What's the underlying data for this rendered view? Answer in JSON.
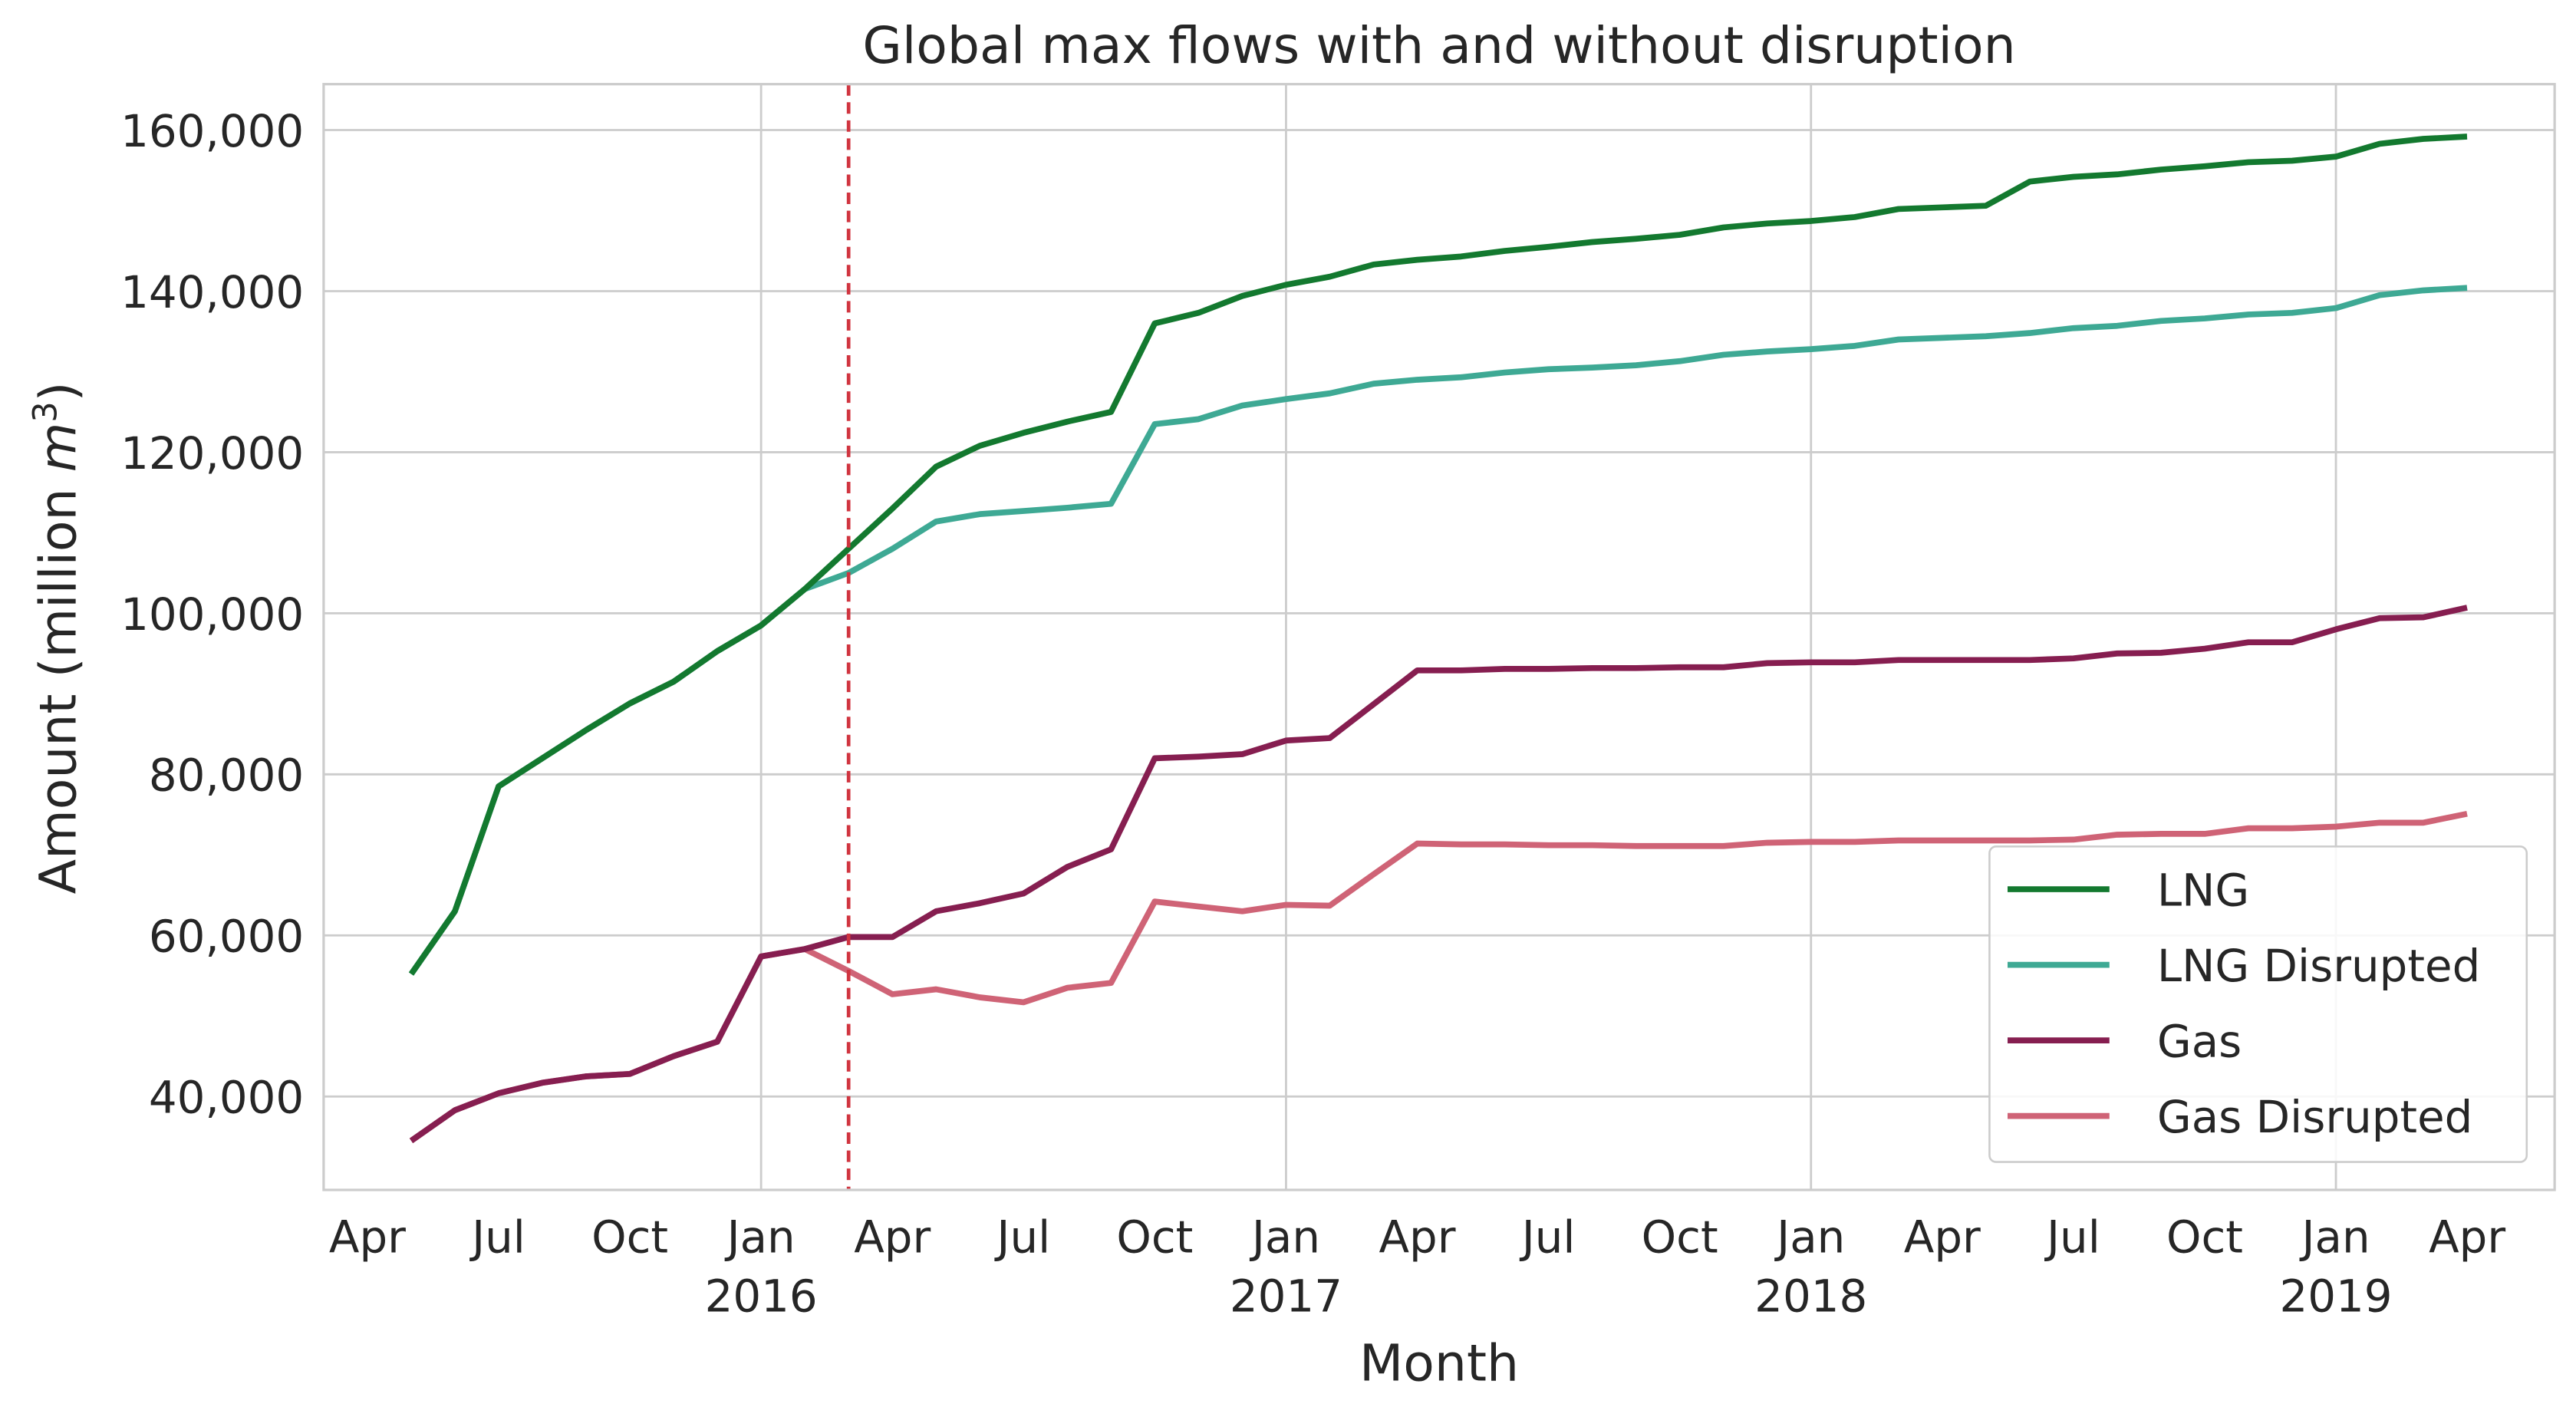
{
  "chart_data": {
    "type": "line",
    "title": "Global max flows with and without disruption",
    "xlabel": "Month",
    "ylabel": "Amount (million m³)",
    "ylabel_parts": {
      "main": "Amount (million ",
      "var": "m",
      "sup": "3",
      "close": ")"
    },
    "x_start": "2015-05",
    "x_frequency": "monthly",
    "x_ticks": [
      {
        "date": "2015-04",
        "label": "Apr",
        "year": ""
      },
      {
        "date": "2015-07",
        "label": "Jul",
        "year": ""
      },
      {
        "date": "2015-10",
        "label": "Oct",
        "year": ""
      },
      {
        "date": "2016-01",
        "label": "Jan",
        "year": "2016"
      },
      {
        "date": "2016-04",
        "label": "Apr",
        "year": ""
      },
      {
        "date": "2016-07",
        "label": "Jul",
        "year": ""
      },
      {
        "date": "2016-10",
        "label": "Oct",
        "year": ""
      },
      {
        "date": "2017-01",
        "label": "Jan",
        "year": "2017"
      },
      {
        "date": "2017-04",
        "label": "Apr",
        "year": ""
      },
      {
        "date": "2017-07",
        "label": "Jul",
        "year": ""
      },
      {
        "date": "2017-10",
        "label": "Oct",
        "year": ""
      },
      {
        "date": "2018-01",
        "label": "Jan",
        "year": "2018"
      },
      {
        "date": "2018-04",
        "label": "Apr",
        "year": ""
      },
      {
        "date": "2018-07",
        "label": "Jul",
        "year": ""
      },
      {
        "date": "2018-10",
        "label": "Oct",
        "year": ""
      },
      {
        "date": "2019-01",
        "label": "Jan",
        "year": "2019"
      },
      {
        "date": "2019-04",
        "label": "Apr",
        "year": ""
      }
    ],
    "y_ticks": [
      40000,
      60000,
      80000,
      100000,
      120000,
      140000,
      160000
    ],
    "y_tick_labels": [
      "40,000",
      "60,000",
      "80,000",
      "100,000",
      "120,000",
      "140,000",
      "160,000"
    ],
    "ylim": [
      28400,
      165700
    ],
    "xlim": [
      "2015-03",
      "2019-06"
    ],
    "grid": true,
    "legend_position": "lower-right",
    "vline": {
      "date": "2016-03",
      "color": "#d0343f",
      "style": "dashed"
    },
    "series": [
      {
        "name": "LNG",
        "color": "#13792f",
        "values": [
          55200,
          63000,
          78500,
          82000,
          85500,
          88800,
          91500,
          95300,
          98500,
          103000,
          108000,
          113000,
          118200,
          120800,
          122400,
          123800,
          125000,
          136000,
          137300,
          139400,
          140800,
          141800,
          143300,
          143900,
          144300,
          145000,
          145500,
          146100,
          146500,
          147000,
          147900,
          148400,
          148700,
          149200,
          150200,
          150400,
          150600,
          153600,
          154200,
          154500,
          155100,
          155500,
          156000,
          156200,
          156700,
          158300,
          158900,
          159200
        ]
      },
      {
        "name": "LNG Disrupted",
        "color": "#3ea994",
        "values": [
          55200,
          63000,
          78500,
          82000,
          85500,
          88800,
          91500,
          95300,
          98500,
          103000,
          105000,
          108000,
          111400,
          112300,
          112700,
          113100,
          113600,
          123500,
          124100,
          125800,
          126600,
          127300,
          128500,
          129000,
          129300,
          129900,
          130300,
          130500,
          130800,
          131300,
          132100,
          132500,
          132800,
          133200,
          134000,
          134200,
          134400,
          134800,
          135400,
          135700,
          136300,
          136600,
          137100,
          137300,
          137900,
          139500,
          140100,
          140400
        ]
      },
      {
        "name": "Gas",
        "color": "#861e50",
        "values": [
          34500,
          38300,
          40400,
          41700,
          42500,
          42800,
          45000,
          46800,
          57400,
          58300,
          59800,
          59800,
          63000,
          64000,
          65200,
          68500,
          70700,
          82000,
          82200,
          82500,
          84200,
          84500,
          88700,
          92900,
          92900,
          93100,
          93100,
          93200,
          93200,
          93300,
          93300,
          93800,
          93900,
          93900,
          94200,
          94200,
          94200,
          94200,
          94400,
          95000,
          95100,
          95600,
          96400,
          96400,
          98000,
          99400,
          99500,
          100700
        ]
      },
      {
        "name": "Gas Disrupted",
        "color": "#cf6376",
        "values": [
          34500,
          38300,
          40400,
          41700,
          42500,
          42800,
          45000,
          46800,
          57400,
          58300,
          55600,
          52700,
          53300,
          52300,
          51700,
          53500,
          54100,
          64200,
          63600,
          63000,
          63800,
          63700,
          67600,
          71400,
          71300,
          71300,
          71200,
          71200,
          71100,
          71100,
          71100,
          71500,
          71600,
          71600,
          71800,
          71800,
          71800,
          71800,
          71900,
          72500,
          72600,
          72600,
          73300,
          73300,
          73500,
          74000,
          74000,
          75100
        ]
      }
    ]
  }
}
